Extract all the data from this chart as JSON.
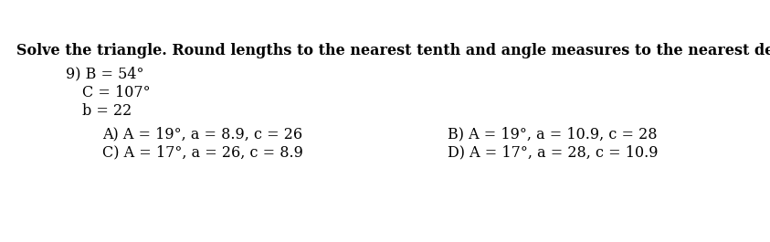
{
  "title": "Solve the triangle. Round lengths to the nearest tenth and angle measures to the nearest degree.",
  "line1": "9) B = 54°",
  "line2": "C = 107°",
  "line3": "b = 22",
  "answer_A": "A) A = 19°, a = 8.9, c = 26",
  "answer_B": "B) A = 19°, a = 10.9, c = 28",
  "answer_C": "C) A = 17°, a = 26, c = 8.9",
  "answer_D": "D) A = 17°, a = 28, c = 10.9",
  "bg_color": "#b0b0b0",
  "main_bg": "#ffffff",
  "title_fontsize": 11.5,
  "body_fontsize": 11.5
}
